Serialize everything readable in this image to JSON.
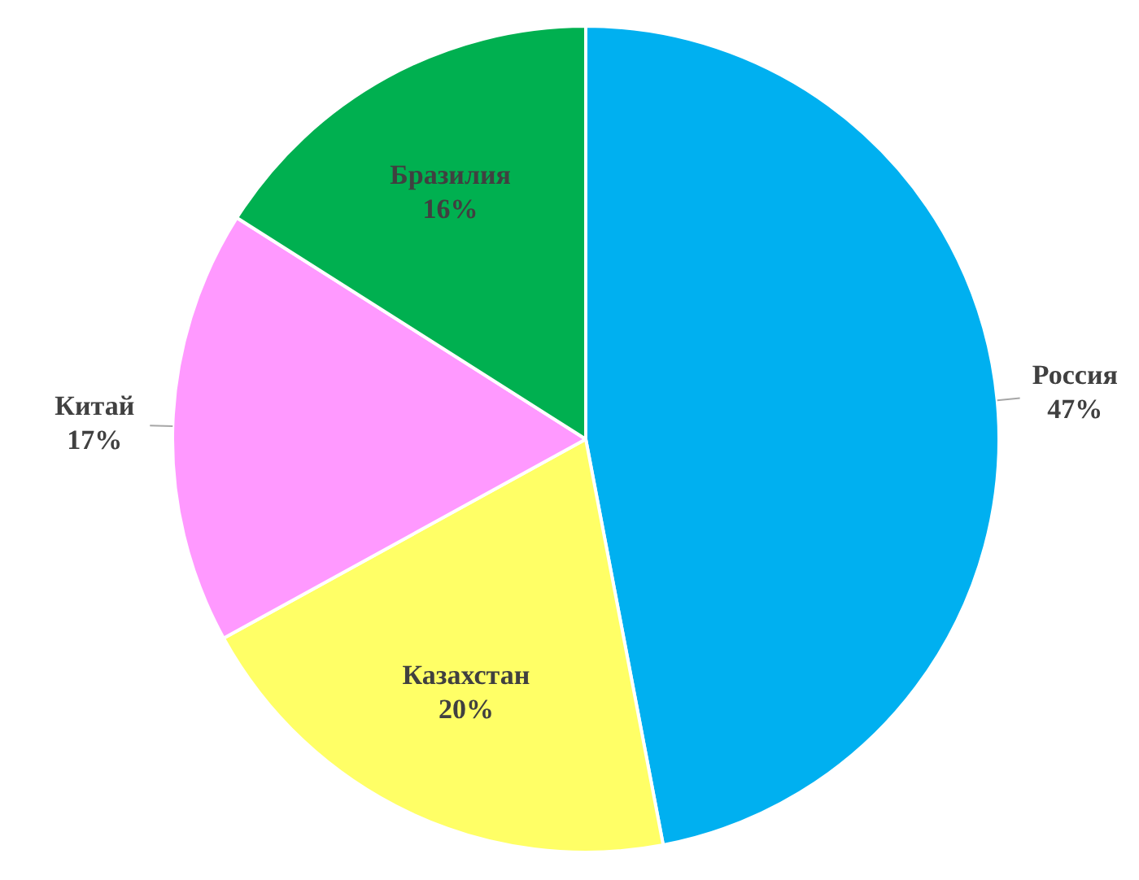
{
  "chart_data": {
    "type": "pie",
    "categories": [
      "Россия",
      "Казахстан",
      "Китай",
      "Бразилия"
    ],
    "values": [
      47,
      20,
      17,
      16
    ],
    "colors": [
      "#00b0f0",
      "#ffff66",
      "#ff99ff",
      "#00b050"
    ],
    "value_labels": [
      "47%",
      "20%",
      "17%",
      "16%"
    ],
    "legend": false
  }
}
